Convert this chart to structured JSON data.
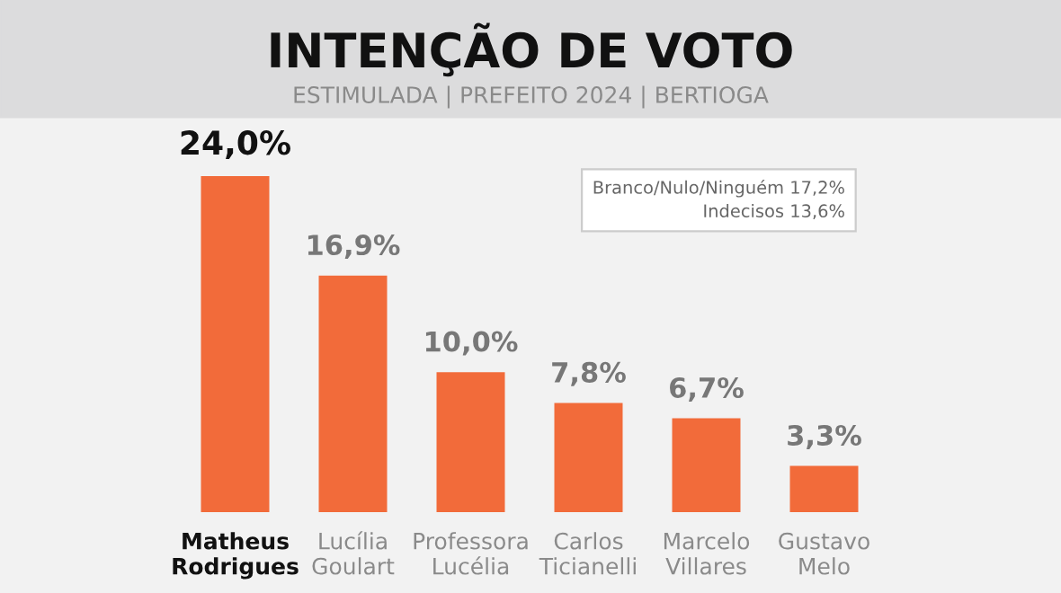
{
  "chart_data": {
    "type": "bar",
    "title": "INTENÇÃO DE VOTO",
    "subtitle": "ESTIMULADA | PREFEITO 2024 | BERTIOGA",
    "categories": [
      "Matheus\nRodrigues",
      "Lucília\nGoulart",
      "Professora\nLucélia",
      "Carlos\nTicianelli",
      "Marcelo\nVillares",
      "Gustavo\nMelo"
    ],
    "values": [
      24.0,
      16.9,
      10.0,
      7.8,
      6.7,
      3.3
    ],
    "value_labels": [
      "24,0%",
      "16,9%",
      "10,0%",
      "7,8%",
      "6,7%",
      "3,3%"
    ],
    "color": "#f26b3a",
    "annotations": [
      "Branco/Nulo/Ninguém 17,2%",
      "Indecisos 13,6%"
    ],
    "grid": false,
    "legend": false
  }
}
